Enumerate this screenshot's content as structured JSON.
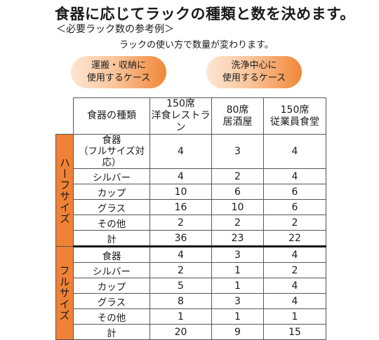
{
  "title": "食器に応じてラックの種類と数を決めます。",
  "subtitle": "＜必要ラック数の参考例＞",
  "note": "ラックの使い方で数量が変わります。",
  "pills": {
    "left": {
      "line1": "運搬・収納に",
      "line2": "使用するケース"
    },
    "right": {
      "line1": "洗浄中心に",
      "line2": "使用するケース"
    }
  },
  "table": {
    "headers": {
      "item": "食器の種類",
      "col1": {
        "line1": "150席",
        "line2": "洋食レストラン"
      },
      "col2": {
        "line1": "80席",
        "line2": "居酒屋"
      },
      "col3": {
        "line1": "150席",
        "line2": "従業員食堂"
      }
    },
    "groups": {
      "half": "ハーフサイズ",
      "full": "フルサイズ"
    },
    "half_rows": [
      {
        "item_line1": "食器",
        "item_line2": "（フルサイズ対応）",
        "v1": "4",
        "v2": "3",
        "v3": "4"
      },
      {
        "item": "シルバー",
        "v1": "4",
        "v2": "2",
        "v3": "4"
      },
      {
        "item": "カップ",
        "v1": "10",
        "v2": "6",
        "v3": "6"
      },
      {
        "item": "グラス",
        "v1": "16",
        "v2": "10",
        "v3": "6"
      },
      {
        "item": "その他",
        "v1": "2",
        "v2": "2",
        "v3": "2"
      },
      {
        "item": "計",
        "v1": "36",
        "v2": "23",
        "v3": "22"
      }
    ],
    "full_rows": [
      {
        "item": "食器",
        "v1": "4",
        "v2": "3",
        "v3": "4"
      },
      {
        "item": "シルバー",
        "v1": "2",
        "v2": "1",
        "v3": "2"
      },
      {
        "item": "カップ",
        "v1": "5",
        "v2": "1",
        "v3": "4"
      },
      {
        "item": "グラス",
        "v1": "8",
        "v2": "3",
        "v3": "4"
      },
      {
        "item": "その他",
        "v1": "1",
        "v2": "1",
        "v3": "1"
      },
      {
        "item": "計",
        "v1": "20",
        "v2": "9",
        "v3": "15"
      }
    ]
  }
}
